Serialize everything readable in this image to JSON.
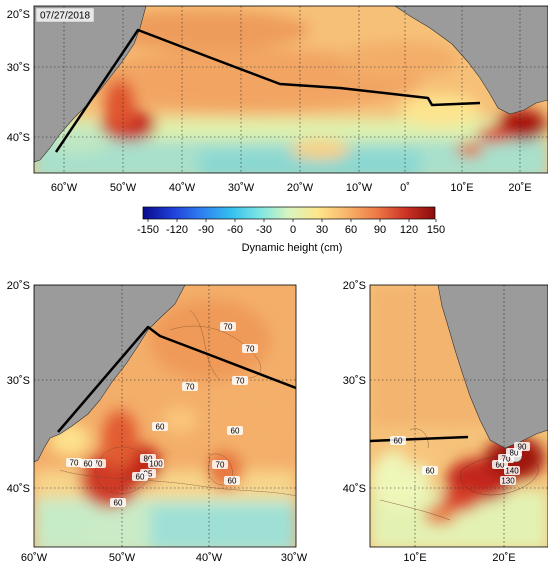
{
  "figure": {
    "date_label": "07/27/2018",
    "colorbar": {
      "title": "Dynamic height (cm)",
      "ticks": [
        "-150",
        "-120",
        "-90",
        "-60",
        "-30",
        "0",
        "30",
        "60",
        "90",
        "120",
        "150"
      ],
      "colors": [
        "#1a1ab4",
        "#2b55e6",
        "#2aa2ee",
        "#52d8ec",
        "#a3eed9",
        "#e7f5b5",
        "#fde58a",
        "#f8b76c",
        "#ec7f4c",
        "#d03a2a",
        "#961010"
      ]
    },
    "panels": {
      "top": {
        "lat_labels": [
          "20˚S",
          "30˚S",
          "40˚S"
        ],
        "lon_labels": [
          "60˚W",
          "50˚W",
          "40˚W",
          "30˚W",
          "20˚W",
          "10˚W",
          "0˚",
          "10˚E",
          "20˚E"
        ]
      },
      "left": {
        "lat_labels": [
          "20˚S",
          "30˚S",
          "40˚S"
        ],
        "lon_labels": [
          "60˚W",
          "50˚W",
          "40˚W",
          "30˚W"
        ],
        "contour_labels": [
          "70",
          "70",
          "70",
          "70",
          "60",
          "70",
          "60",
          "70",
          "80",
          "100",
          "60",
          "95",
          "70",
          "60",
          "60",
          "60"
        ]
      },
      "right": {
        "lat_labels": [
          "20˚S",
          "30˚S",
          "40˚S"
        ],
        "lon_labels": [
          "10˚E",
          "20˚E"
        ],
        "contour_labels": [
          "60",
          "60",
          "60",
          "70",
          "80",
          "90",
          "140",
          "130"
        ]
      }
    }
  }
}
